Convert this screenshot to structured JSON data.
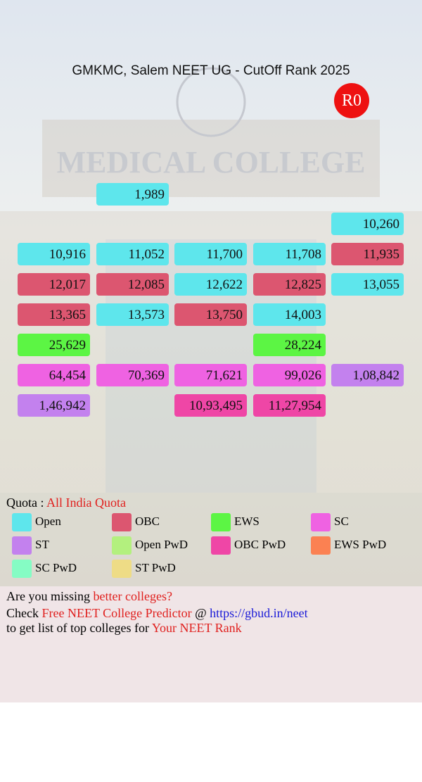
{
  "header": {
    "title": "GMKMC, Salem NEET UG - CutOff Rank 2025",
    "badge": "R0"
  },
  "grid": {
    "rows": [
      [
        null,
        {
          "rank": "1,989",
          "quota": "Open"
        },
        null,
        null,
        null
      ],
      [
        null,
        null,
        null,
        null,
        {
          "rank": "10,260",
          "quota": "Open"
        }
      ],
      [
        {
          "rank": "10,916",
          "quota": "Open"
        },
        {
          "rank": "11,052",
          "quota": "Open"
        },
        {
          "rank": "11,700",
          "quota": "Open"
        },
        {
          "rank": "11,708",
          "quota": "Open"
        },
        {
          "rank": "11,935",
          "quota": "OBC"
        }
      ],
      [
        {
          "rank": "12,017",
          "quota": "OBC"
        },
        {
          "rank": "12,085",
          "quota": "OBC"
        },
        {
          "rank": "12,622",
          "quota": "Open"
        },
        {
          "rank": "12,825",
          "quota": "OBC"
        },
        {
          "rank": "13,055",
          "quota": "Open"
        }
      ],
      [
        {
          "rank": "13,365",
          "quota": "OBC"
        },
        {
          "rank": "13,573",
          "quota": "Open"
        },
        {
          "rank": "13,750",
          "quota": "OBC"
        },
        {
          "rank": "14,003",
          "quota": "Open"
        },
        null
      ],
      [
        {
          "rank": "25,629",
          "quota": "EWS"
        },
        null,
        null,
        {
          "rank": "28,224",
          "quota": "EWS"
        },
        null
      ],
      [
        {
          "rank": "64,454",
          "quota": "SC"
        },
        {
          "rank": "70,369",
          "quota": "SC"
        },
        {
          "rank": "71,621",
          "quota": "SC"
        },
        {
          "rank": "99,026",
          "quota": "SC"
        },
        {
          "rank": "1,08,842",
          "quota": "ST"
        }
      ],
      [
        {
          "rank": "1,46,942",
          "quota": "ST"
        },
        null,
        {
          "rank": "10,93,495",
          "quota": "OBC PwD"
        },
        {
          "rank": "11,27,954",
          "quota": "OBC PwD"
        },
        null
      ]
    ]
  },
  "legend": {
    "label": "Quota :",
    "quota": "All India Quota",
    "items": [
      {
        "name": "Open",
        "color": "#5ee6ec"
      },
      {
        "name": "OBC",
        "color": "#dc5670"
      },
      {
        "name": "EWS",
        "color": "#5cf544"
      },
      {
        "name": "SC",
        "color": "#ef62e2"
      },
      {
        "name": "ST",
        "color": "#c381ee"
      },
      {
        "name": "Open PwD",
        "color": "#b3f07e"
      },
      {
        "name": "OBC PwD",
        "color": "#ef46a6"
      },
      {
        "name": "EWS PwD",
        "color": "#fb8152"
      },
      {
        "name": "SC PwD",
        "color": "#85fcc4"
      },
      {
        "name": "ST PwD",
        "color": "#eedc86"
      }
    ]
  },
  "footer": {
    "line1": [
      "Are you missing",
      "better colleges?"
    ],
    "line2": [
      "Check",
      "Free NEET College Predictor",
      "@",
      "https://gbud.in/neet"
    ],
    "line3": [
      "to get list of top colleges for",
      "Your NEET Rank"
    ]
  }
}
